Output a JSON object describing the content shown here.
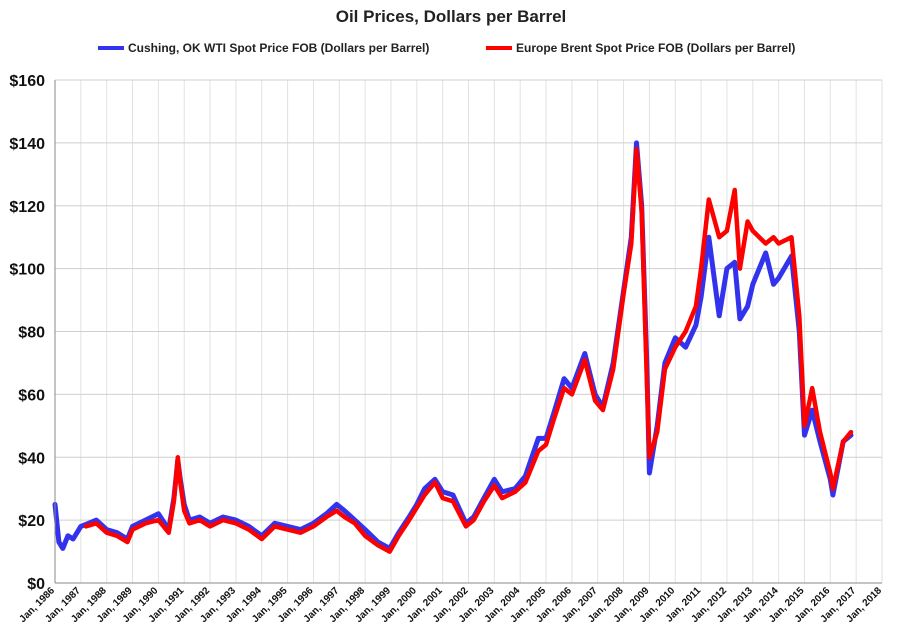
{
  "chart_data": {
    "type": "line",
    "title": "Oil Prices, Dollars per Barrel",
    "xlabel": "",
    "ylabel": "",
    "ylim": [
      0,
      160
    ],
    "xlim": [
      1986,
      2018
    ],
    "grid": true,
    "legend_position": "top",
    "y_ticks": [
      0,
      20,
      40,
      60,
      80,
      100,
      120,
      140,
      160
    ],
    "y_tick_labels": [
      "$0",
      "$20",
      "$40",
      "$60",
      "$80",
      "$100",
      "$120",
      "$140",
      "$160"
    ],
    "x_tick_labels": [
      "Jan, 1986",
      "Jan, 1987",
      "Jan, 1988",
      "Jan, 1989",
      "Jan, 1990",
      "Jan, 1991",
      "Jan, 1992",
      "Jan, 1993",
      "Jan, 1994",
      "Jan, 1995",
      "Jan, 1996",
      "Jan, 1997",
      "Jan, 1998",
      "Jan, 1999",
      "Jan, 2000",
      "Jan, 2001",
      "Jan, 2002",
      "Jan, 2003",
      "Jan, 2004",
      "Jan, 2005",
      "Jan, 2006",
      "Jan, 2007",
      "Jan, 2008",
      "Jan, 2009",
      "Jan, 2010",
      "Jan, 2011",
      "Jan, 2012",
      "Jan, 2013",
      "Jan, 2014",
      "Jan, 2015",
      "Jan, 2016",
      "Jan, 2017",
      "Jan, 2018"
    ],
    "series": [
      {
        "name": "Cushing, OK WTI Spot Price FOB (Dollars per Barrel)",
        "color": "#3333ee",
        "x": [
          1986.0,
          1986.15,
          1986.3,
          1986.5,
          1986.7,
          1987.0,
          1987.3,
          1987.6,
          1988.0,
          1988.4,
          1988.8,
          1989.0,
          1989.5,
          1990.0,
          1990.4,
          1990.6,
          1990.75,
          1990.85,
          1991.0,
          1991.2,
          1991.6,
          1992.0,
          1992.5,
          1993.0,
          1993.5,
          1994.0,
          1994.5,
          1995.0,
          1995.5,
          1996.0,
          1996.5,
          1996.9,
          1997.2,
          1997.6,
          1998.0,
          1998.5,
          1998.95,
          1999.3,
          1999.7,
          2000.0,
          2000.3,
          2000.7,
          2001.0,
          2001.4,
          2001.9,
          2002.2,
          2002.6,
          2003.0,
          2003.3,
          2003.8,
          2004.2,
          2004.7,
          2005.0,
          2005.3,
          2005.7,
          2006.0,
          2006.5,
          2006.9,
          2007.2,
          2007.6,
          2008.0,
          2008.3,
          2008.5,
          2008.7,
          2008.9,
          2009.0,
          2009.3,
          2009.6,
          2010.0,
          2010.4,
          2010.8,
          2011.0,
          2011.3,
          2011.7,
          2012.0,
          2012.3,
          2012.5,
          2012.8,
          2013.0,
          2013.5,
          2013.8,
          2014.0,
          2014.5,
          2014.8,
          2015.0,
          2015.3,
          2015.6,
          2016.0,
          2016.1,
          2016.5,
          2016.8
        ],
        "values": [
          25,
          13,
          11,
          15,
          14,
          18,
          19,
          20,
          17,
          16,
          14,
          18,
          20,
          22,
          17,
          27,
          39,
          33,
          25,
          20,
          21,
          19,
          21,
          20,
          18,
          15,
          19,
          18,
          17,
          19,
          22,
          25,
          23,
          20,
          17,
          13,
          11,
          16,
          21,
          25,
          30,
          33,
          29,
          28,
          19,
          21,
          27,
          33,
          29,
          30,
          34,
          46,
          46,
          54,
          65,
          62,
          73,
          60,
          56,
          70,
          93,
          110,
          140,
          120,
          70,
          35,
          50,
          70,
          78,
          75,
          82,
          91,
          110,
          85,
          100,
          102,
          84,
          88,
          95,
          105,
          95,
          97,
          104,
          80,
          47,
          55,
          45,
          33,
          28,
          45,
          47
        ]
      },
      {
        "name": "Europe Brent Spot Price FOB (Dollars per Barrel)",
        "color": "#ff0000",
        "x": [
          1987.2,
          1987.6,
          1988.0,
          1988.4,
          1988.8,
          1989.0,
          1989.5,
          1990.0,
          1990.4,
          1990.6,
          1990.75,
          1990.85,
          1991.0,
          1991.2,
          1991.6,
          1992.0,
          1992.5,
          1993.0,
          1993.5,
          1994.0,
          1994.5,
          1995.0,
          1995.5,
          1996.0,
          1996.5,
          1996.9,
          1997.2,
          1997.6,
          1998.0,
          1998.5,
          1998.95,
          1999.3,
          1999.7,
          2000.0,
          2000.3,
          2000.7,
          2001.0,
          2001.4,
          2001.9,
          2002.2,
          2002.6,
          2003.0,
          2003.3,
          2003.8,
          2004.2,
          2004.7,
          2005.0,
          2005.3,
          2005.7,
          2006.0,
          2006.5,
          2006.9,
          2007.2,
          2007.6,
          2008.0,
          2008.3,
          2008.5,
          2008.7,
          2008.9,
          2009.0,
          2009.3,
          2009.6,
          2010.0,
          2010.4,
          2010.8,
          2011.0,
          2011.3,
          2011.7,
          2012.0,
          2012.3,
          2012.5,
          2012.8,
          2013.0,
          2013.5,
          2013.8,
          2014.0,
          2014.5,
          2014.8,
          2015.0,
          2015.3,
          2015.6,
          2016.0,
          2016.1,
          2016.5,
          2016.8
        ],
        "values": [
          18,
          19,
          16,
          15,
          13,
          17,
          19,
          20,
          16,
          26,
          40,
          32,
          23,
          19,
          20,
          18,
          20,
          19,
          17,
          14,
          18,
          17,
          16,
          18,
          21,
          23,
          21,
          19,
          15,
          12,
          10,
          15,
          20,
          24,
          28,
          32,
          27,
          26,
          18,
          20,
          26,
          31,
          27,
          29,
          32,
          42,
          44,
          52,
          62,
          60,
          71,
          58,
          55,
          68,
          92,
          108,
          138,
          118,
          65,
          40,
          48,
          68,
          75,
          80,
          88,
          100,
          122,
          110,
          112,
          125,
          100,
          115,
          112,
          108,
          110,
          108,
          110,
          85,
          50,
          62,
          48,
          35,
          30,
          45,
          48
        ]
      }
    ]
  }
}
